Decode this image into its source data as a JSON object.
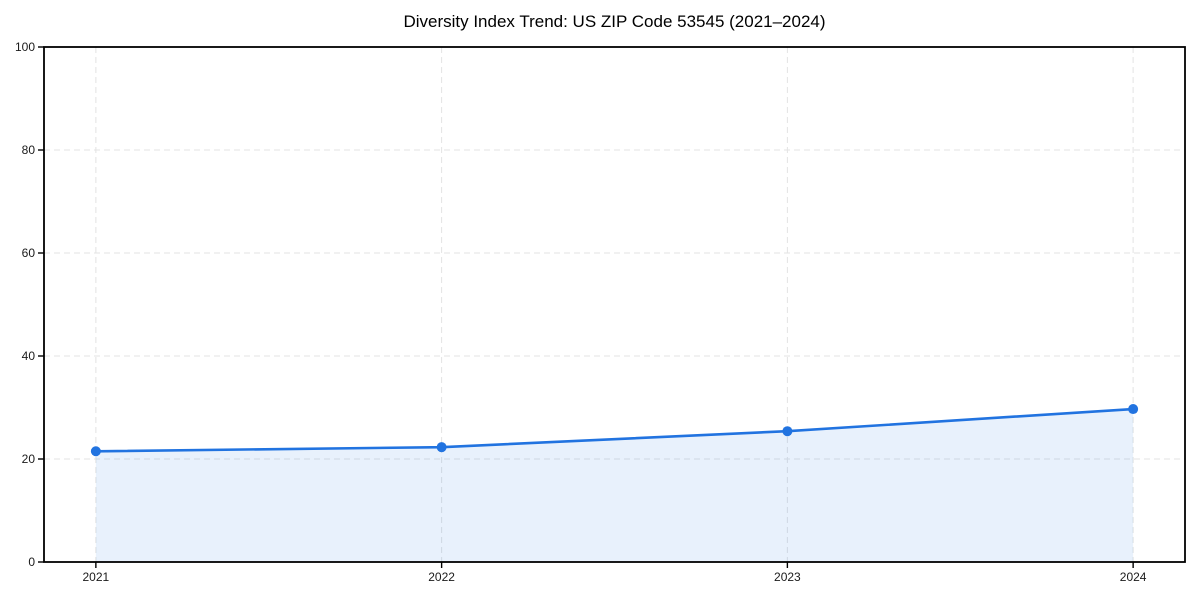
{
  "chart_data": {
    "type": "area",
    "title": "Diversity Index Trend: US ZIP Code 53545 (2021–2024)",
    "x": [
      2021,
      2022,
      2023,
      2024
    ],
    "xtick_labels": [
      "2021",
      "2022",
      "2023",
      "2024"
    ],
    "series": [
      {
        "name": "Diversity Index",
        "values": [
          21.5,
          22.3,
          25.4,
          29.7
        ]
      }
    ],
    "xlabel": "",
    "ylabel": "",
    "xlim": [
      2020.85,
      2024.15
    ],
    "ylim": [
      0,
      100
    ],
    "yticks": [
      0,
      20,
      40,
      60,
      80,
      100
    ],
    "grid": true,
    "grid_style": "dashed",
    "legend_position": "none",
    "style": {
      "line_color": "#2173e0",
      "marker_color": "#2173e0",
      "fill_color": "rgba(33,115,224,0.10)",
      "grid_color": "#e3e3e3",
      "spine_color": "#000000",
      "tick_color": "#000000",
      "tick_label_color": "#1a1a1a",
      "title_color": "#000000",
      "background_color": "#ffffff"
    }
  }
}
